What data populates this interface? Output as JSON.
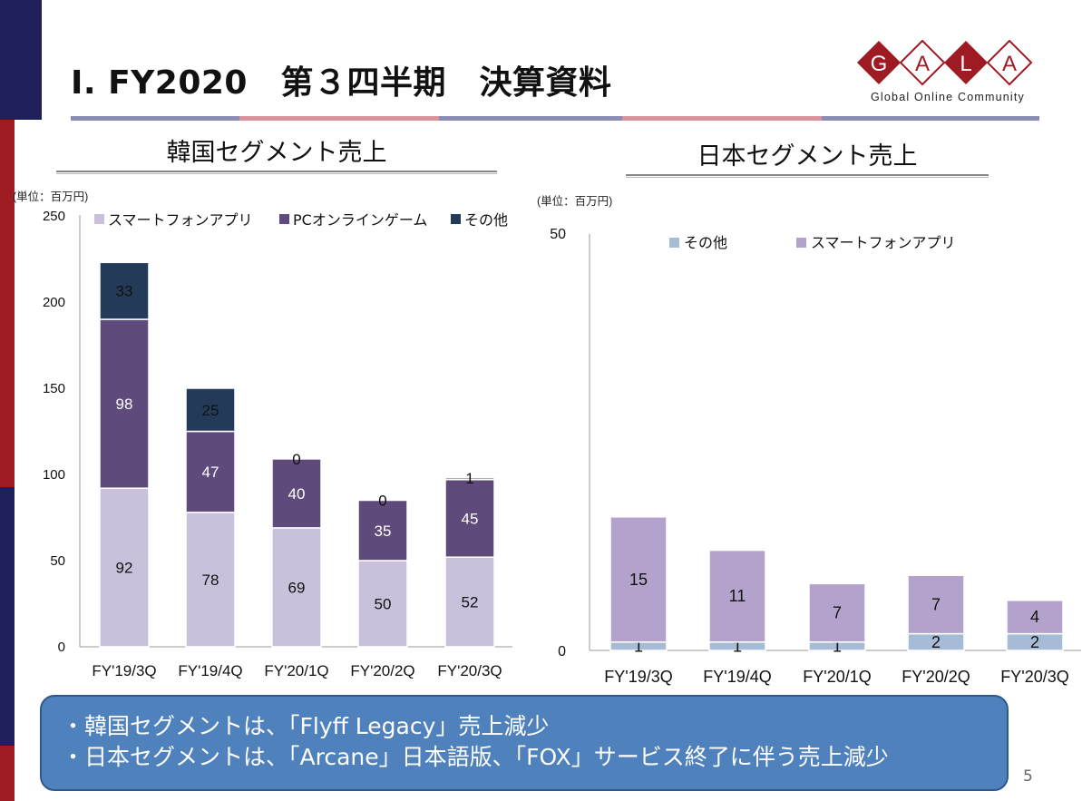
{
  "page_title": "I. FY2020　第３四半期　決算資料",
  "logo": {
    "letters": [
      "G",
      "A",
      "L",
      "A"
    ],
    "tagline": "Global Online Community"
  },
  "colors": {
    "brand_navy": "#1f1f5c",
    "brand_red": "#9e1b24",
    "smartphone": "#c9c0db",
    "pc_online": "#5e4a7b",
    "other": "#233a59",
    "jp_smartphone": "#b3a2cc",
    "jp_other": "#a6bbd6",
    "callout_bg": "#4f81bd"
  },
  "charts_titles": {
    "korea": "韓国セグメント売上",
    "japan": "日本セグメント売上"
  },
  "chart_data": [
    {
      "type": "bar",
      "stacked": true,
      "title": "韓国セグメント売上",
      "unit_label": "(単位：百万円)",
      "categories": [
        "FY'19/3Q",
        "FY'19/4Q",
        "FY'20/1Q",
        "FY'20/2Q",
        "FY'20/3Q"
      ],
      "series": [
        {
          "name": "スマートフォンアプリ",
          "values": [
            92,
            78,
            69,
            50,
            52
          ]
        },
        {
          "name": "PCオンラインゲーム",
          "values": [
            98,
            47,
            40,
            35,
            45
          ]
        },
        {
          "name": "その他",
          "values": [
            33,
            25,
            0,
            0,
            1
          ]
        }
      ],
      "ylim": [
        0,
        250
      ],
      "yticks": [
        "0",
        "50",
        "100",
        "150",
        "200",
        "250"
      ],
      "legend": "top"
    },
    {
      "type": "bar",
      "stacked": true,
      "title": "日本セグメント売上",
      "unit_label": "(単位：百万円)",
      "categories": [
        "FY'19/3Q",
        "FY'19/4Q",
        "FY'20/1Q",
        "FY'20/2Q",
        "FY'20/3Q"
      ],
      "series": [
        {
          "name": "その他",
          "values": [
            1,
            1,
            1,
            2,
            2
          ]
        },
        {
          "name": "スマートフォンアプリ",
          "values": [
            15,
            11,
            7,
            7,
            4
          ]
        }
      ],
      "ylim": [
        0,
        50
      ],
      "yticks": [
        "0",
        "50"
      ],
      "legend": "top"
    }
  ],
  "notes": [
    "・韓国セグメントは、「Flyff Legacy」売上減少",
    "・日本セグメントは、「Arcane」日本語版、「FOX」サービス終了に伴う売上減少"
  ],
  "page_number": "5"
}
